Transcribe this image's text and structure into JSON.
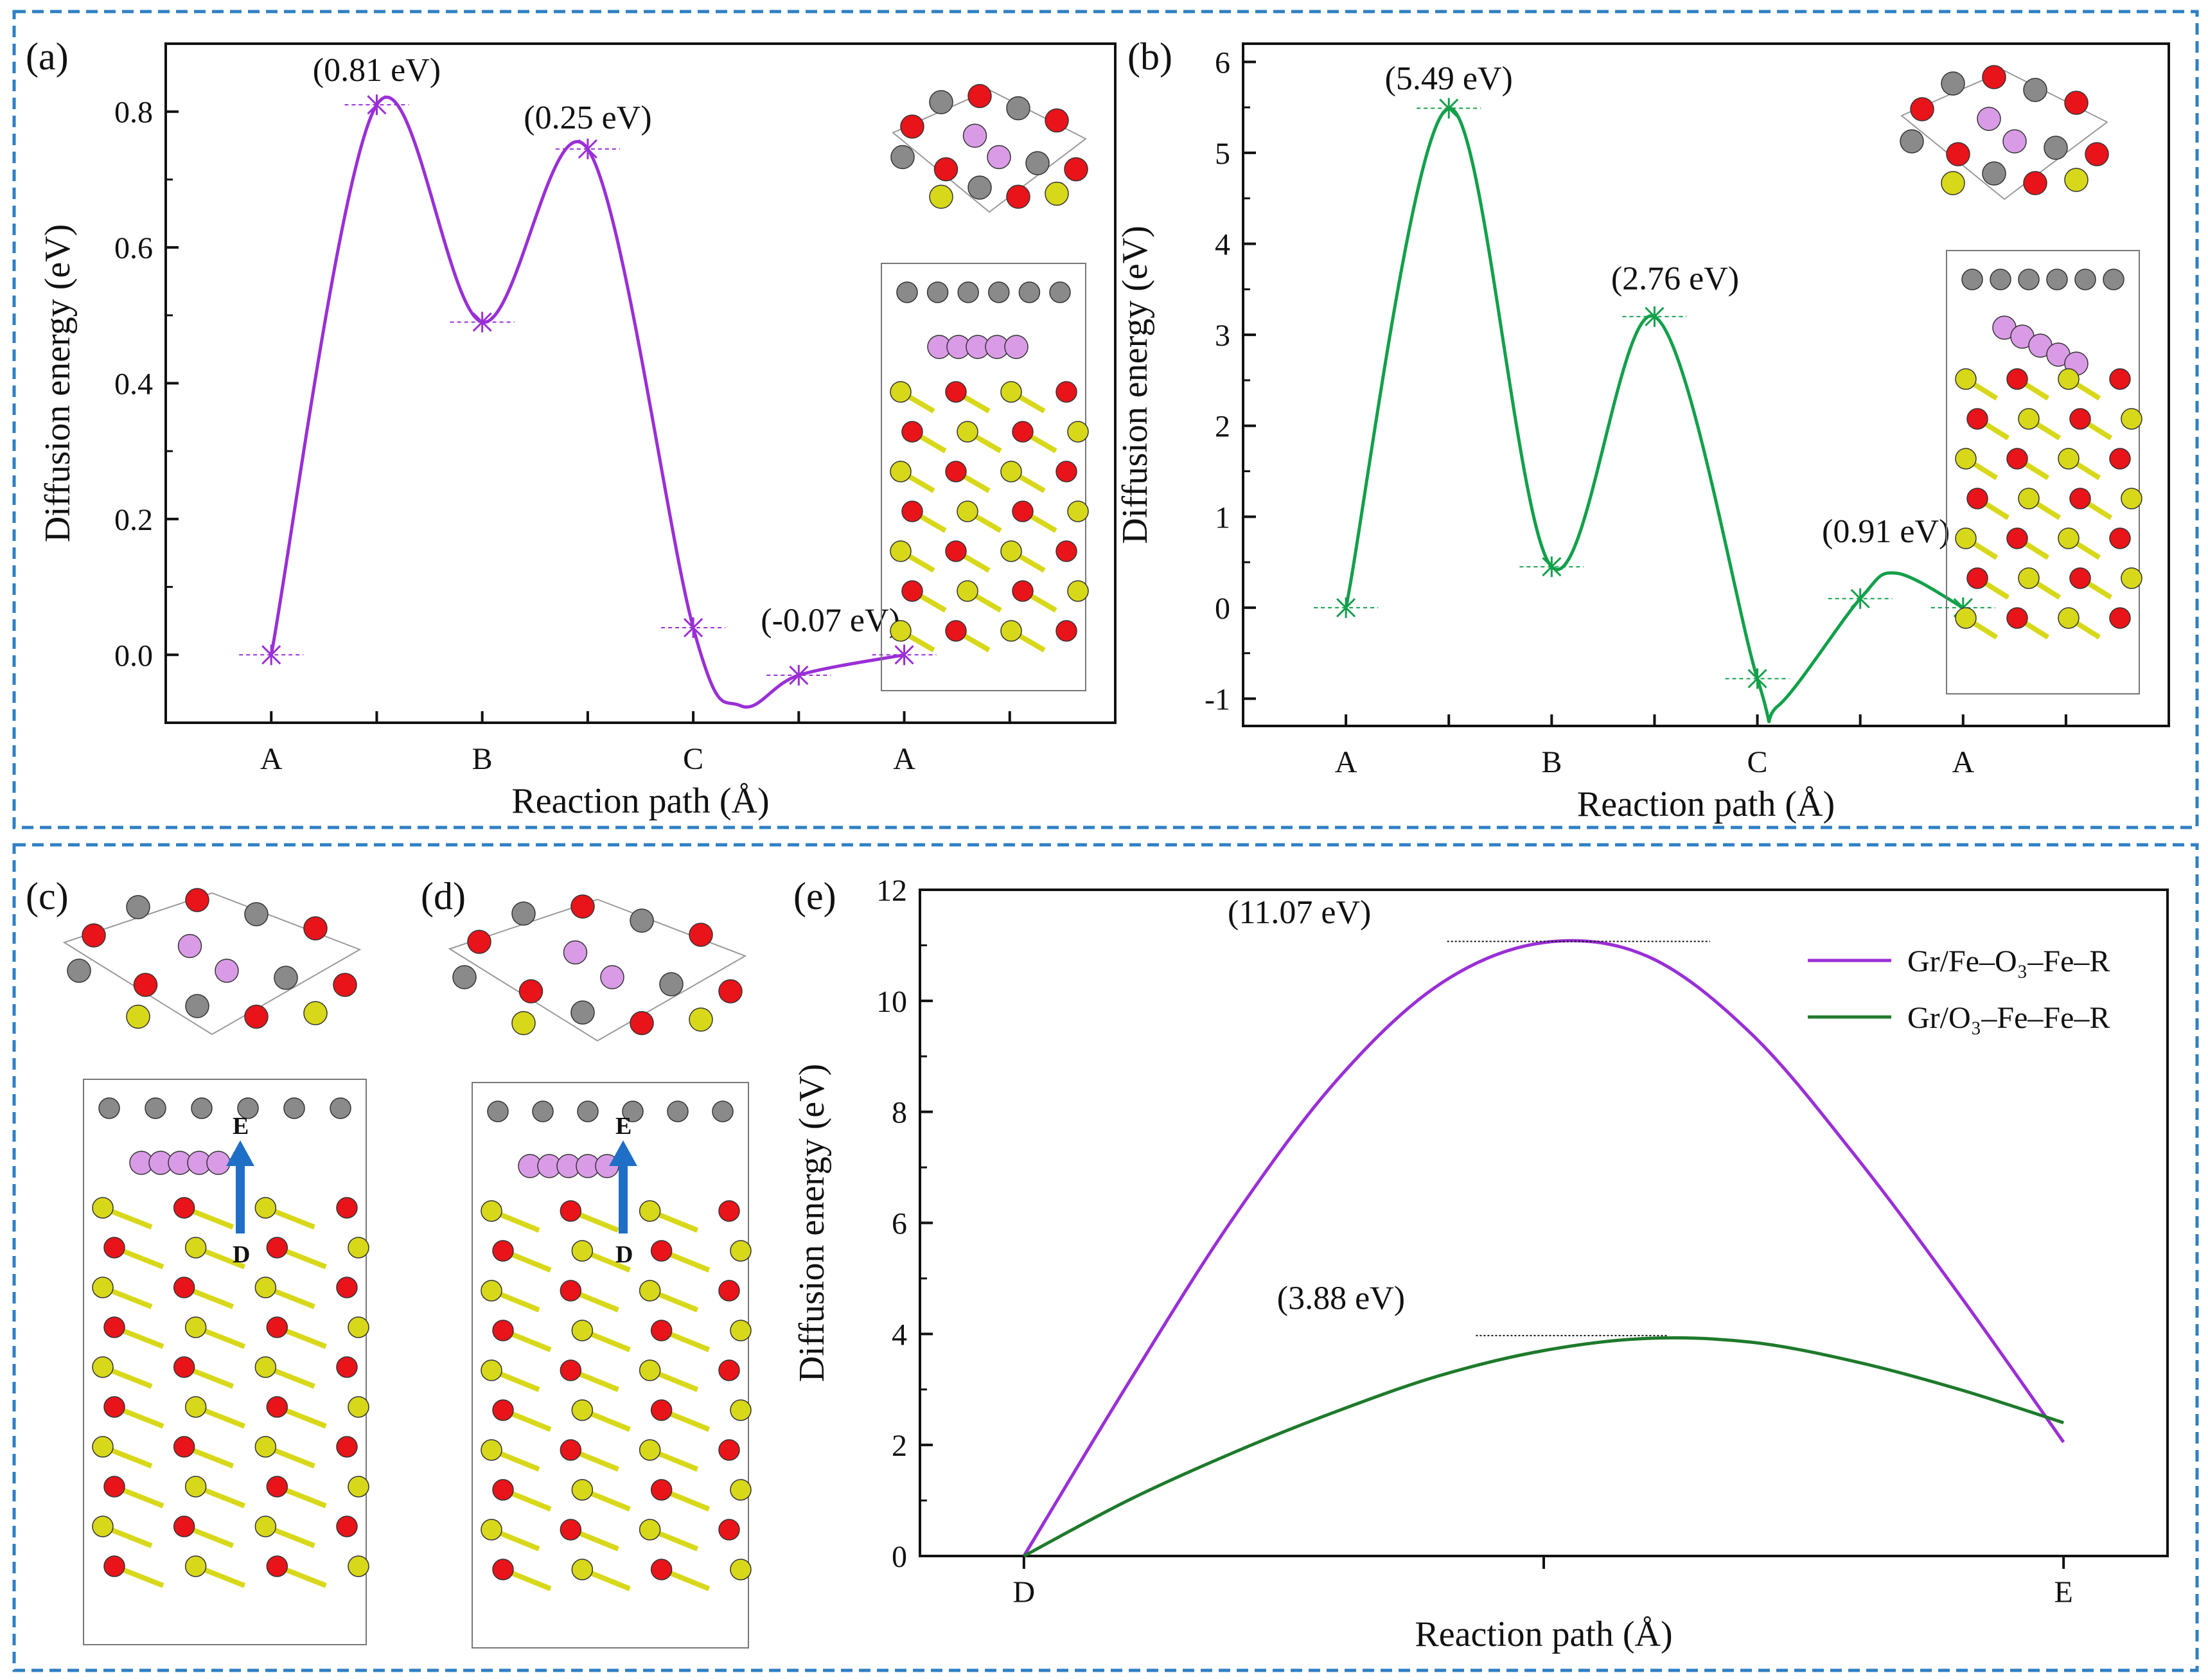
{
  "colors": {
    "purple": "#9a2fd6",
    "green": "#12a04a",
    "dark_green": "#1e7a2c",
    "frame_blue": "#2f7fc4",
    "o_red": "#e8141a",
    "fe_yellow": "#d8d81a",
    "c_grey": "#8a8a8a",
    "li_pink": "#d99be6",
    "arrow_blue": "#1f6fc6"
  },
  "panel_labels": {
    "a": "(a)",
    "b": "(b)",
    "c": "(c)",
    "d": "(d)",
    "e": "(e)"
  },
  "chart_data": [
    {
      "id": "a",
      "type": "line",
      "xlabel": "Reaction path (Å)",
      "ylabel": "Diffusion energy (eV)",
      "ylim": [
        -0.1,
        0.9
      ],
      "yticks": [
        0.0,
        0.2,
        0.4,
        0.6,
        0.8
      ],
      "ytick_labels": [
        "0.0",
        "0.2",
        "0.4",
        "0.6",
        "0.8"
      ],
      "xlim": [
        0,
        9
      ],
      "x_tick_labels": [
        {
          "x": 1,
          "label": "A"
        },
        {
          "x": 3,
          "label": "B"
        },
        {
          "x": 5,
          "label": "C"
        },
        {
          "x": 7,
          "label": "A"
        }
      ],
      "color": "purple",
      "points": [
        {
          "x": 1,
          "y": 0.0
        },
        {
          "x": 2,
          "y": 0.81
        },
        {
          "x": 3,
          "y": 0.49
        },
        {
          "x": 4,
          "y": 0.745
        },
        {
          "x": 5,
          "y": 0.04
        },
        {
          "x": 6,
          "y": -0.03
        },
        {
          "x": 7,
          "y": 0.0
        }
      ],
      "curve_extrema": [
        {
          "x": 5.45,
          "y": -0.075
        }
      ],
      "annotations": [
        {
          "text": "(0.81 eV)",
          "x": 2.0,
          "y": 0.845
        },
        {
          "text": "(0.25 eV)",
          "x": 4.0,
          "y": 0.775
        },
        {
          "text": "(-0.07 eV)",
          "x": 6.3,
          "y": 0.035
        }
      ]
    },
    {
      "id": "b",
      "type": "line",
      "xlabel": "Reaction path (Å)",
      "ylabel": "Diffusion energy (eV)",
      "ylim": [
        -1.3,
        6.2
      ],
      "yticks": [
        -1,
        0,
        1,
        2,
        3,
        4,
        5,
        6
      ],
      "ytick_labels": [
        "-1",
        "0",
        "1",
        "2",
        "3",
        "4",
        "5",
        "6"
      ],
      "xlim": [
        0,
        9
      ],
      "x_tick_labels": [
        {
          "x": 1,
          "label": "A"
        },
        {
          "x": 3,
          "label": "B"
        },
        {
          "x": 5,
          "label": "C"
        },
        {
          "x": 7,
          "label": "A"
        }
      ],
      "color": "green",
      "points": [
        {
          "x": 1,
          "y": 0.0
        },
        {
          "x": 2,
          "y": 5.49
        },
        {
          "x": 3,
          "y": 0.45
        },
        {
          "x": 4,
          "y": 3.2
        },
        {
          "x": 5,
          "y": -0.78
        },
        {
          "x": 6,
          "y": 0.1
        },
        {
          "x": 7,
          "y": 0.0
        }
      ],
      "curve_extrema": [
        {
          "x": 5.2,
          "y": -1.08
        },
        {
          "x": 6.35,
          "y": 0.38
        }
      ],
      "annotations": [
        {
          "text": "(5.49 eV)",
          "x": 2.0,
          "y": 5.7
        },
        {
          "text": "(2.76 eV)",
          "x": 4.2,
          "y": 3.5
        },
        {
          "text": "(0.91 eV)",
          "x": 6.25,
          "y": 0.72
        }
      ]
    },
    {
      "id": "e",
      "type": "line",
      "xlabel": "Reaction path (Å)",
      "ylabel": "Diffusion energy (eV)",
      "ylim": [
        0,
        12
      ],
      "yticks": [
        0,
        2,
        4,
        6,
        8,
        10,
        12
      ],
      "ytick_labels": [
        "0",
        "2",
        "4",
        "6",
        "8",
        "10",
        "12"
      ],
      "xlim": [
        -0.1,
        1.1
      ],
      "x_tick_labels": [
        {
          "x": 0,
          "label": "D"
        },
        {
          "x": 1,
          "label": "E"
        }
      ],
      "minor_ticks_x": [
        0.5
      ],
      "series": [
        {
          "name": "Gr/Fe–O₃–Fe–R",
          "color": "purple",
          "x": [
            0,
            0.1,
            0.2,
            0.3,
            0.4,
            0.5,
            0.6,
            0.7,
            0.8,
            0.9,
            1.0
          ],
          "y": [
            0,
            3.1,
            6.05,
            8.55,
            10.3,
            11.05,
            10.8,
            9.4,
            7.2,
            4.7,
            2.05
          ]
        },
        {
          "name": "Gr/O₃–Fe–Fe–R",
          "color": "dark_green",
          "x": [
            0,
            0.1,
            0.2,
            0.3,
            0.4,
            0.5,
            0.6,
            0.7,
            0.8,
            0.9,
            1.0
          ],
          "y": [
            0,
            1.0,
            1.85,
            2.6,
            3.25,
            3.7,
            3.92,
            3.85,
            3.5,
            3.0,
            2.4
          ]
        }
      ],
      "annotations": [
        {
          "text": "(11.07 eV)",
          "x": 0.265,
          "y": 11.4
        },
        {
          "text": "(3.88 eV)",
          "x": 0.305,
          "y": 4.45
        }
      ],
      "legend_position": "top-right"
    }
  ],
  "structure_labels": {
    "c_top": "E",
    "c_bottom": "D",
    "d_top": "E",
    "d_bottom": "D"
  }
}
